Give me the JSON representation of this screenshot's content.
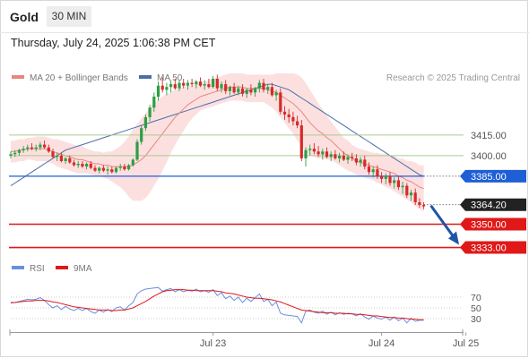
{
  "header": {
    "instrument": "Gold",
    "timeframe": "30 MIN",
    "timestamp": "Thursday, July 24, 2025 1:06:38 PM CET"
  },
  "legend": {
    "ma20_label": "MA 20 + Bollinger Bands",
    "ma50_label": "MA 50",
    "copyright": "Research © 2025 Trading Central",
    "rsi_label": "RSI",
    "rsi_ma_label": "9MA"
  },
  "colors": {
    "up_candle": "#2e9e45",
    "down_candle": "#d62a2a",
    "ma20": "#e8857e",
    "bollinger_fill": "#fcdada",
    "ma50": "#4a6ea8",
    "pivot": "#1f5fd6",
    "support": "#e01818",
    "resistance": "#a9cc8f",
    "arrow": "#1f55a8",
    "rsi": "#6b8fe0",
    "rsi_ma": "#e01818",
    "last_price": "#222222"
  },
  "chart_data": [
    {
      "type": "candlestick",
      "instrument": "Gold",
      "timeframe": "30 MIN",
      "ylim": [
        3322,
        3475
      ],
      "x_axis": {
        "ticks": [
          "Jul 23",
          "Jul 24",
          "Jul 25"
        ],
        "tick_bar_index": [
          48,
          88,
          108
        ]
      },
      "ohlc": [
        [
          3400,
          3403,
          3398,
          3401
        ],
        [
          3401,
          3404,
          3399,
          3402
        ],
        [
          3402,
          3405,
          3400,
          3404
        ],
        [
          3404,
          3407,
          3402,
          3405
        ],
        [
          3405,
          3408,
          3403,
          3406
        ],
        [
          3406,
          3409,
          3404,
          3405
        ],
        [
          3405,
          3408,
          3403,
          3406
        ],
        [
          3406,
          3410,
          3404,
          3408
        ],
        [
          3408,
          3411,
          3405,
          3406
        ],
        [
          3406,
          3408,
          3402,
          3403
        ],
        [
          3403,
          3405,
          3398,
          3399
        ],
        [
          3399,
          3402,
          3396,
          3400
        ],
        [
          3400,
          3402,
          3395,
          3396
        ],
        [
          3396,
          3399,
          3394,
          3398
        ],
        [
          3398,
          3400,
          3394,
          3395
        ],
        [
          3395,
          3397,
          3392,
          3393
        ],
        [
          3393,
          3396,
          3391,
          3394
        ],
        [
          3394,
          3396,
          3391,
          3392
        ],
        [
          3392,
          3395,
          3390,
          3394
        ],
        [
          3394,
          3396,
          3390,
          3391
        ],
        [
          3391,
          3393,
          3388,
          3389
        ],
        [
          3389,
          3392,
          3387,
          3391
        ],
        [
          3391,
          3393,
          3388,
          3389
        ],
        [
          3389,
          3392,
          3386,
          3390
        ],
        [
          3390,
          3392,
          3387,
          3388
        ],
        [
          3388,
          3392,
          3387,
          3391
        ],
        [
          3391,
          3394,
          3389,
          3392
        ],
        [
          3392,
          3394,
          3389,
          3390
        ],
        [
          3390,
          3394,
          3389,
          3393
        ],
        [
          3393,
          3398,
          3392,
          3397
        ],
        [
          3397,
          3412,
          3396,
          3410
        ],
        [
          3410,
          3422,
          3408,
          3420
        ],
        [
          3420,
          3430,
          3418,
          3428
        ],
        [
          3428,
          3437,
          3425,
          3435
        ],
        [
          3435,
          3446,
          3432,
          3443
        ],
        [
          3443,
          3454,
          3440,
          3451
        ],
        [
          3451,
          3457,
          3446,
          3448
        ],
        [
          3448,
          3453,
          3444,
          3450
        ],
        [
          3450,
          3455,
          3446,
          3452
        ],
        [
          3452,
          3456,
          3448,
          3449
        ],
        [
          3449,
          3455,
          3447,
          3453
        ],
        [
          3453,
          3456,
          3449,
          3451
        ],
        [
          3451,
          3455,
          3448,
          3453
        ],
        [
          3453,
          3456,
          3450,
          3452
        ],
        [
          3452,
          3455,
          3449,
          3454
        ],
        [
          3454,
          3457,
          3450,
          3451
        ],
        [
          3451,
          3455,
          3448,
          3452
        ],
        [
          3452,
          3456,
          3449,
          3450
        ],
        [
          3450,
          3458,
          3449,
          3456
        ],
        [
          3456,
          3459,
          3447,
          3449
        ],
        [
          3449,
          3454,
          3446,
          3452
        ],
        [
          3452,
          3455,
          3445,
          3447
        ],
        [
          3447,
          3451,
          3444,
          3450
        ],
        [
          3450,
          3453,
          3445,
          3446
        ],
        [
          3446,
          3451,
          3444,
          3449
        ],
        [
          3449,
          3452,
          3443,
          3445
        ],
        [
          3445,
          3449,
          3442,
          3448
        ],
        [
          3448,
          3452,
          3444,
          3446
        ],
        [
          3446,
          3450,
          3443,
          3449
        ],
        [
          3449,
          3455,
          3446,
          3453
        ],
        [
          3453,
          3456,
          3446,
          3448
        ],
        [
          3448,
          3452,
          3445,
          3450
        ],
        [
          3450,
          3453,
          3443,
          3444
        ],
        [
          3444,
          3448,
          3440,
          3446
        ],
        [
          3446,
          3449,
          3430,
          3432
        ],
        [
          3432,
          3436,
          3426,
          3430
        ],
        [
          3430,
          3434,
          3424,
          3428
        ],
        [
          3428,
          3432,
          3422,
          3425
        ],
        [
          3425,
          3429,
          3420,
          3422
        ],
        [
          3422,
          3426,
          3396,
          3398
        ],
        [
          3398,
          3406,
          3392,
          3404
        ],
        [
          3404,
          3408,
          3400,
          3405
        ],
        [
          3405,
          3409,
          3401,
          3403
        ],
        [
          3403,
          3407,
          3399,
          3401
        ],
        [
          3401,
          3405,
          3397,
          3403
        ],
        [
          3403,
          3406,
          3398,
          3399
        ],
        [
          3399,
          3403,
          3396,
          3401
        ],
        [
          3401,
          3404,
          3397,
          3398
        ],
        [
          3398,
          3402,
          3395,
          3400
        ],
        [
          3400,
          3403,
          3396,
          3397
        ],
        [
          3397,
          3401,
          3394,
          3399
        ],
        [
          3399,
          3402,
          3396,
          3398
        ],
        [
          3398,
          3401,
          3393,
          3395
        ],
        [
          3395,
          3399,
          3392,
          3397
        ],
        [
          3397,
          3400,
          3390,
          3392
        ],
        [
          3392,
          3395,
          3386,
          3388
        ],
        [
          3388,
          3392,
          3384,
          3390
        ],
        [
          3390,
          3393,
          3383,
          3385
        ],
        [
          3385,
          3388,
          3380,
          3383
        ],
        [
          3383,
          3387,
          3379,
          3385
        ],
        [
          3385,
          3388,
          3378,
          3380
        ],
        [
          3380,
          3384,
          3376,
          3382
        ],
        [
          3382,
          3385,
          3375,
          3377
        ],
        [
          3377,
          3381,
          3372,
          3378
        ],
        [
          3378,
          3380,
          3369,
          3371
        ],
        [
          3371,
          3375,
          3367,
          3373
        ],
        [
          3373,
          3376,
          3364,
          3366
        ],
        [
          3366,
          3369,
          3362,
          3364
        ],
        [
          3364,
          3366,
          3361,
          3363
        ]
      ],
      "ma20": [
        3403,
        3403,
        3404,
        3404,
        3405,
        3405,
        3405,
        3405,
        3405,
        3404,
        3403,
        3402,
        3401,
        3400,
        3399,
        3398,
        3397,
        3397,
        3396,
        3395,
        3394,
        3394,
        3393,
        3393,
        3392,
        3392,
        3392,
        3392,
        3392,
        3393,
        3395,
        3397,
        3400,
        3404,
        3408,
        3412,
        3416,
        3420,
        3424,
        3428,
        3431,
        3434,
        3437,
        3439,
        3441,
        3443,
        3444,
        3445,
        3446,
        3447,
        3448,
        3449,
        3450,
        3450,
        3450,
        3450,
        3449,
        3449,
        3449,
        3449,
        3449,
        3448,
        3447,
        3446,
        3444,
        3442,
        3440,
        3438,
        3435,
        3432,
        3428,
        3424,
        3421,
        3418,
        3416,
        3413,
        3411,
        3408,
        3405,
        3402,
        3400,
        3398,
        3396,
        3395,
        3394,
        3393,
        3392,
        3391,
        3390,
        3389,
        3388,
        3387,
        3385,
        3384,
        3382,
        3381,
        3379,
        3377,
        3376
      ],
      "ma50": [
        3378,
        3380,
        3382,
        3384,
        3386,
        3388,
        3390,
        3392,
        3394,
        3396,
        3398,
        3400,
        3402,
        3404,
        3405,
        3406,
        3407,
        3408,
        3409,
        3410,
        3411,
        3412,
        3413,
        3414,
        3415,
        3416,
        3417,
        3418,
        3419,
        3420,
        3421,
        3422,
        3423,
        3424,
        3425,
        3426,
        3427,
        3428,
        3429,
        3430,
        3431,
        3432,
        3433,
        3434,
        3435,
        3436,
        3437,
        3438,
        3439,
        3440,
        3441,
        3442,
        3443,
        3444,
        3445,
        3446,
        3447,
        3448,
        3449,
        3450,
        3451,
        3452,
        3452,
        3451,
        3450,
        3449,
        3448,
        3446,
        3444,
        3442,
        3440,
        3438,
        3436,
        3434,
        3432,
        3430,
        3428,
        3426,
        3424,
        3422,
        3420,
        3418,
        3416,
        3414,
        3412,
        3410,
        3408,
        3406,
        3404,
        3402,
        3400,
        3398,
        3396,
        3394,
        3392,
        3390,
        3388,
        3386,
        3385
      ],
      "bollinger_width": [
        8,
        8,
        8,
        8,
        8,
        8,
        9,
        9,
        9,
        9,
        9,
        10,
        10,
        10,
        10,
        10,
        10,
        10,
        9,
        9,
        9,
        9,
        9,
        10,
        11,
        13,
        15,
        18,
        22,
        26,
        28,
        30,
        31,
        31,
        30,
        29,
        27,
        25,
        22,
        20,
        18,
        16,
        14,
        12,
        11,
        10,
        10,
        10,
        10,
        10,
        10,
        10,
        10,
        10,
        10,
        10,
        10,
        10,
        10,
        10,
        10,
        11,
        12,
        14,
        16,
        18,
        20,
        22,
        24,
        25,
        25,
        24,
        22,
        20,
        18,
        16,
        14,
        13,
        12,
        11,
        11,
        10,
        10,
        10,
        10,
        10,
        10,
        11,
        11,
        12,
        12,
        13,
        13,
        14,
        14,
        15,
        16,
        16,
        17
      ],
      "price_levels": [
        {
          "value": 3415.0,
          "label": "3415.00",
          "kind": "resistance"
        },
        {
          "value": 3400.0,
          "label": "3400.00",
          "kind": "resistance"
        },
        {
          "value": 3385.0,
          "label": "3385.00",
          "kind": "pivot"
        },
        {
          "value": 3364.2,
          "label": "3364.20",
          "kind": "last"
        },
        {
          "value": 3350.0,
          "label": "3350.00",
          "kind": "support"
        },
        {
          "value": 3333.0,
          "label": "3333.00",
          "kind": "support"
        }
      ],
      "projection": {
        "from_bar": 98,
        "from_value": 3364.2,
        "to_value": 3333.0
      }
    },
    {
      "type": "line",
      "ylim": [
        0,
        100
      ],
      "y_ticks": [
        70,
        50,
        30
      ],
      "series": [
        {
          "name": "RSI",
          "values": [
            59,
            60,
            62,
            64,
            66,
            65,
            66,
            69,
            64,
            56,
            50,
            54,
            47,
            53,
            48,
            45,
            49,
            45,
            49,
            43,
            40,
            46,
            42,
            47,
            43,
            50,
            52,
            46,
            54,
            60,
            76,
            82,
            85,
            86,
            87,
            88,
            81,
            84,
            86,
            80,
            84,
            80,
            83,
            81,
            85,
            80,
            82,
            79,
            84,
            73,
            78,
            67,
            72,
            64,
            70,
            60,
            68,
            62,
            69,
            76,
            62,
            66,
            54,
            61,
            40,
            37,
            36,
            35,
            34,
            22,
            44,
            46,
            42,
            40,
            44,
            38,
            42,
            37,
            41,
            38,
            40,
            39,
            35,
            39,
            33,
            29,
            35,
            31,
            29,
            33,
            27,
            33,
            26,
            31,
            22,
            31,
            25,
            27,
            27
          ]
        },
        {
          "name": "9MA",
          "values": [
            60,
            60,
            61,
            62,
            63,
            63,
            64,
            64,
            64,
            63,
            61,
            60,
            58,
            56,
            54,
            52,
            51,
            50,
            49,
            48,
            47,
            46,
            46,
            46,
            45,
            45,
            46,
            46,
            48,
            50,
            54,
            58,
            62,
            67,
            72,
            76,
            80,
            82,
            83,
            84,
            84,
            84,
            83,
            83,
            82,
            82,
            82,
            82,
            82,
            81,
            80,
            78,
            77,
            76,
            74,
            72,
            70,
            69,
            68,
            68,
            67,
            66,
            65,
            63,
            61,
            58,
            55,
            52,
            49,
            46,
            45,
            44,
            43,
            42,
            41,
            41,
            41,
            40,
            40,
            40,
            39,
            39,
            38,
            38,
            37,
            36,
            35,
            35,
            34,
            33,
            32,
            32,
            31,
            31,
            30,
            29,
            29,
            28,
            28
          ]
        }
      ]
    }
  ]
}
